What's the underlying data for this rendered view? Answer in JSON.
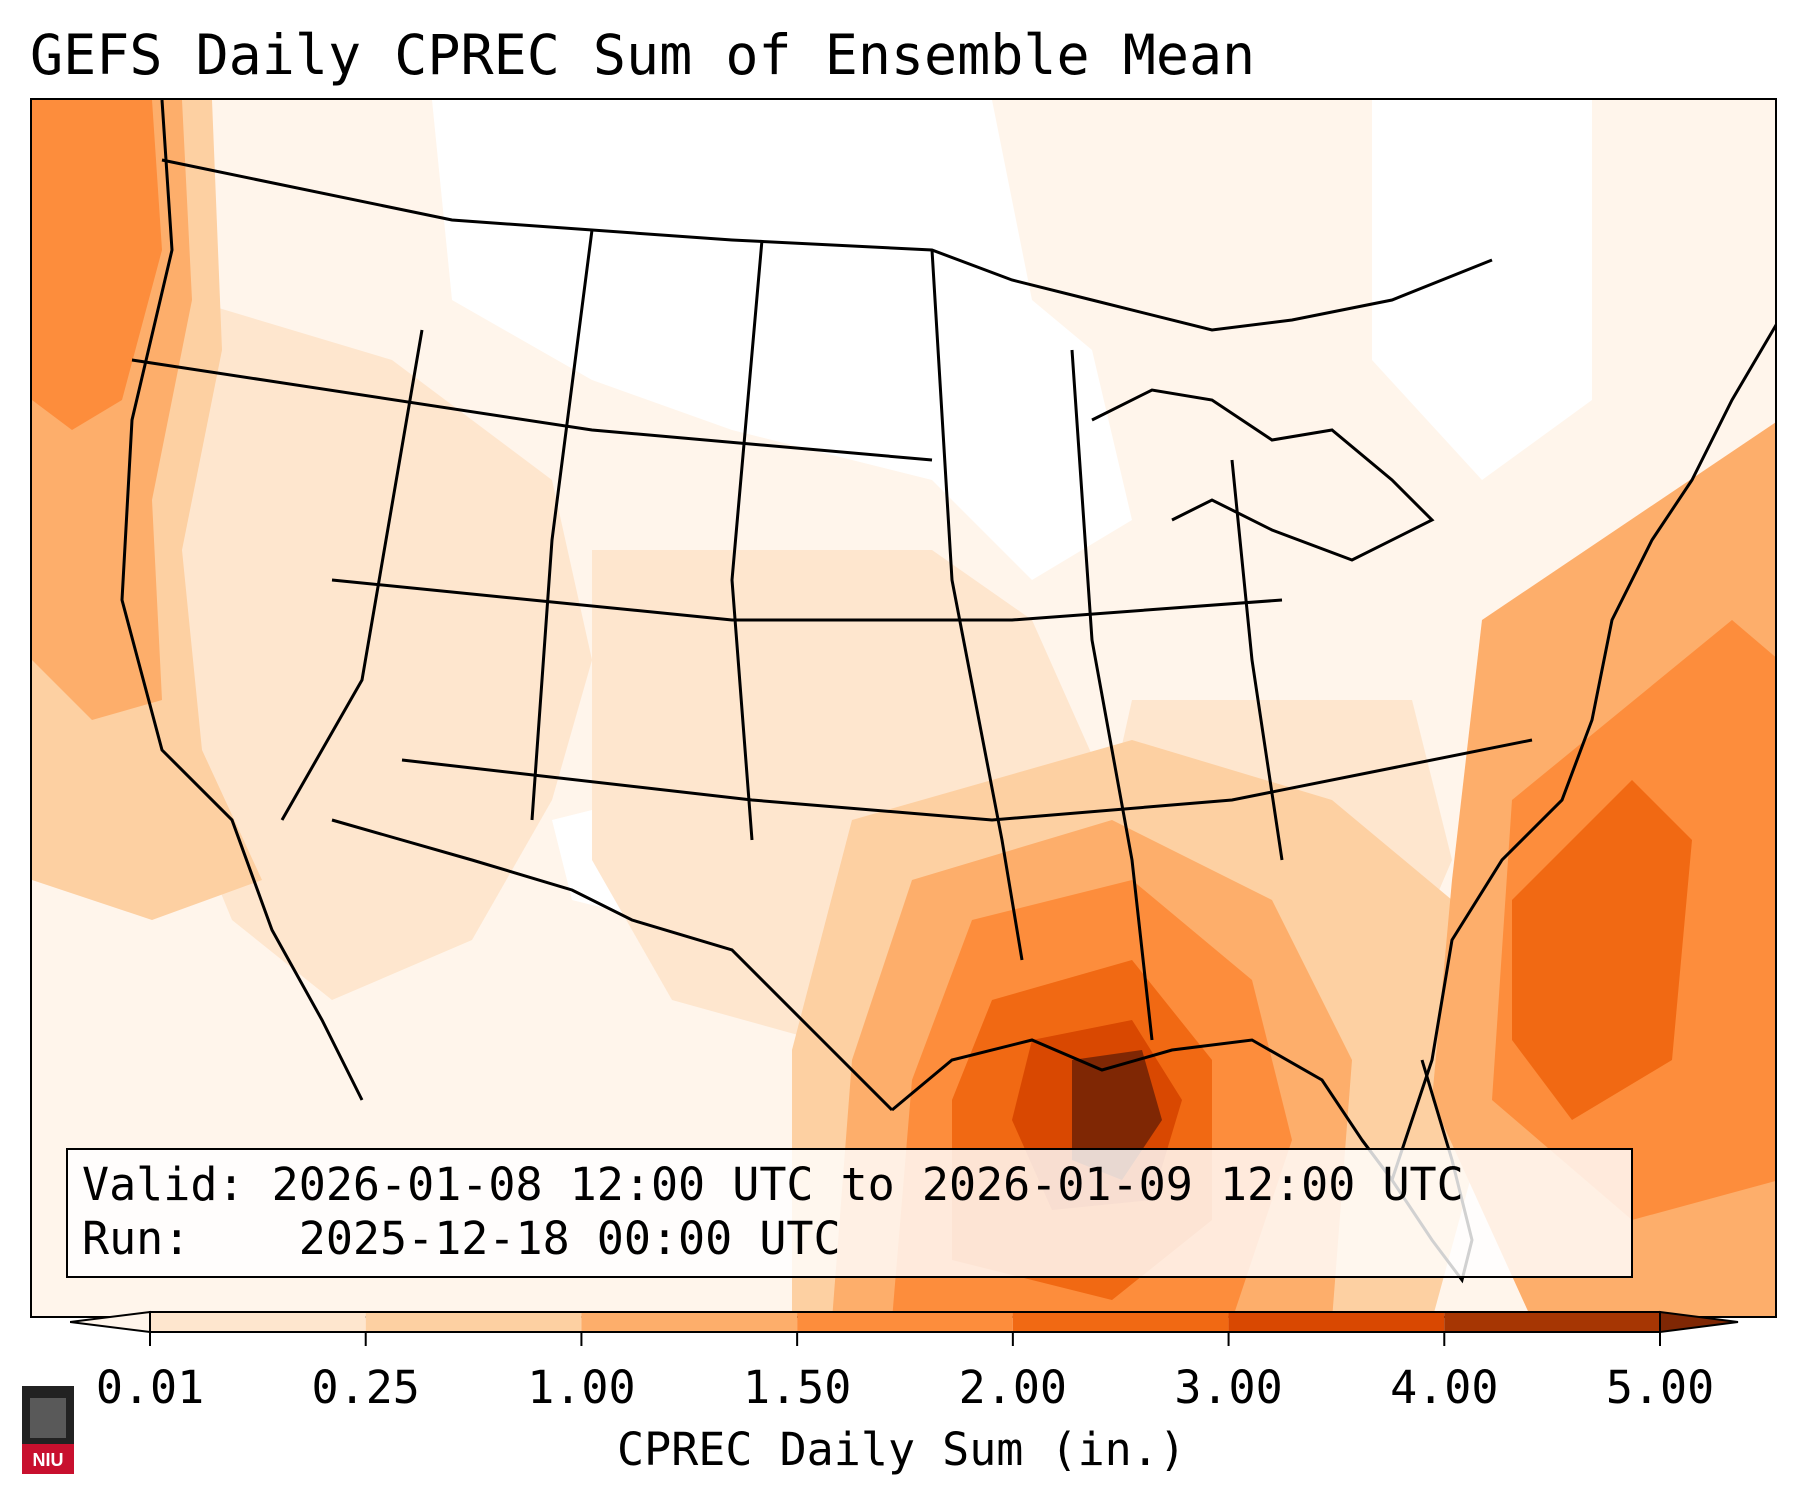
{
  "title": "GEFS Daily CPREC Sum of Ensemble Mean",
  "info": {
    "valid_label": "Valid:",
    "valid_value": "2026-01-08 12:00 UTC to 2026-01-09 12:00 UTC",
    "run_label": "Run:",
    "run_value": "2025-12-18 00:00 UTC"
  },
  "colorbar": {
    "label": "CPREC Daily Sum (in.)",
    "ticks": [
      "0.01",
      "0.25",
      "1.00",
      "1.50",
      "2.00",
      "3.00",
      "4.00",
      "5.00"
    ],
    "colors": [
      "#fff5eb",
      "#fee6ce",
      "#fdd0a2",
      "#fdae6b",
      "#fd8d3c",
      "#f16913",
      "#d94801",
      "#a63603",
      "#7f2704"
    ]
  },
  "logo": {
    "text": "NIU"
  },
  "map": {
    "region": "Continental United States",
    "max_area": "Gulf of Mexico / Louisiana coast",
    "colors": {
      "none": "#ffffff",
      "very_light": "#fff5eb",
      "light": "#fee6ce",
      "light_mid": "#fdd0a2",
      "mid": "#fdae6b",
      "orange": "#fd8d3c",
      "dark_orange": "#f16913",
      "red_orange": "#d94801",
      "brown": "#7f2704",
      "border": "#000000"
    }
  }
}
